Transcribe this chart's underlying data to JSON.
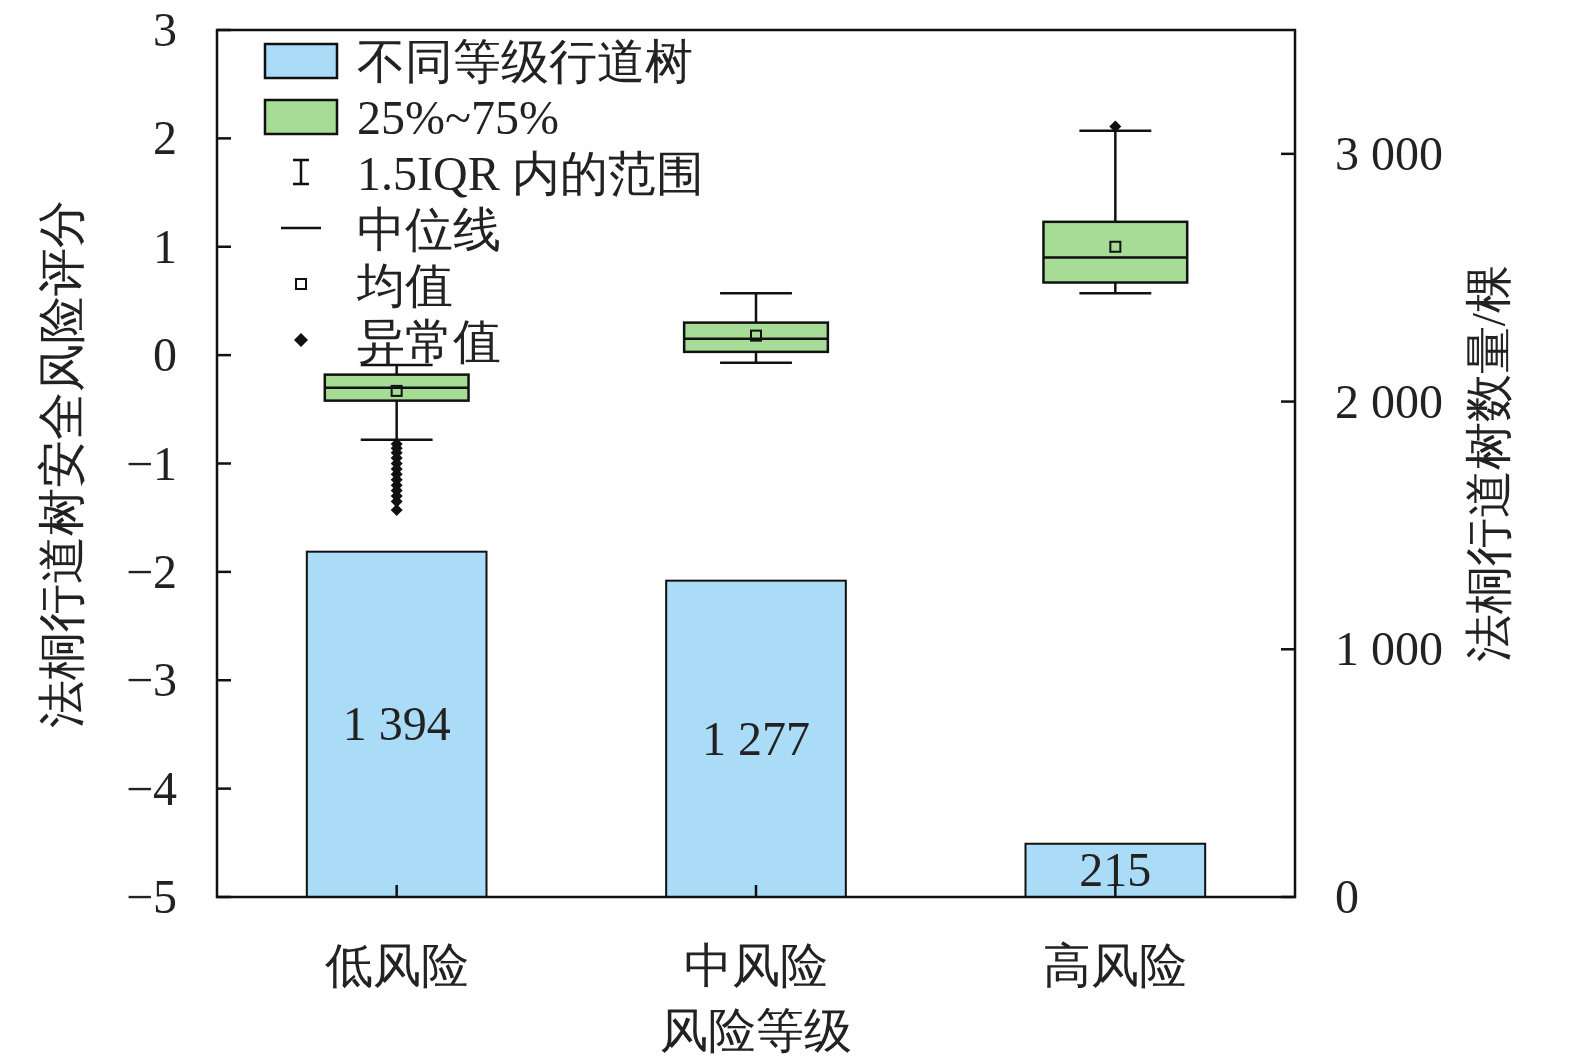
{
  "chart_data": {
    "type": "bar",
    "xlabel": "风险等级",
    "ylabel": "法桐行道树安全风险评分",
    "y2label": "法桐行道树数量/棵",
    "categories": [
      "低风险",
      "中风险",
      "高风险"
    ],
    "series": [
      {
        "name": "不同等级行道树",
        "axis": "y2",
        "color": "#aadcf7",
        "values": [
          1394,
          1277,
          215
        ],
        "value_labels": [
          "1 394",
          "1 277",
          "215"
        ]
      },
      {
        "name": "25%~75%",
        "type": "box",
        "color": "#a6dc96",
        "boxes": [
          {
            "low": -0.78,
            "q1": -0.42,
            "median": -0.3,
            "q3": -0.18,
            "high": -0.09,
            "mean": -0.33,
            "outliers": [
              -0.82,
              -0.86,
              -0.9,
              -0.95,
              -1.0,
              -1.05,
              -1.1,
              -1.15,
              -1.2,
              -1.25,
              -1.3,
              -1.35,
              -1.43
            ]
          },
          {
            "low": -0.07,
            "q1": 0.03,
            "median": 0.15,
            "q3": 0.3,
            "high": 0.57,
            "mean": 0.18
          },
          {
            "low": 0.57,
            "q1": 0.67,
            "median": 0.9,
            "q3": 1.23,
            "high": 2.07,
            "mean": 1.0,
            "outliers": [
              2.11
            ]
          }
        ]
      }
    ],
    "ylim": [
      -5,
      3
    ],
    "yticks": [
      3,
      2,
      1,
      0,
      {
        "value": -1,
        "label": "−1"
      },
      {
        "value": -2,
        "label": "−2"
      },
      {
        "value": -3,
        "label": "−3"
      },
      {
        "value": -4,
        "label": "−4"
      },
      {
        "value": -5,
        "label": "−5"
      }
    ],
    "y2lim": [
      0,
      3500
    ],
    "y2ticks": [
      0,
      {
        "value": 1000,
        "label": "1 000"
      },
      {
        "value": 2000,
        "label": "2 000"
      },
      {
        "value": 3000,
        "label": "3 000"
      }
    ],
    "legend": "top left",
    "grid": false,
    "annotations": [
      "1.5IQR 内的范围",
      "中位线",
      "均值",
      "异常值"
    ]
  }
}
